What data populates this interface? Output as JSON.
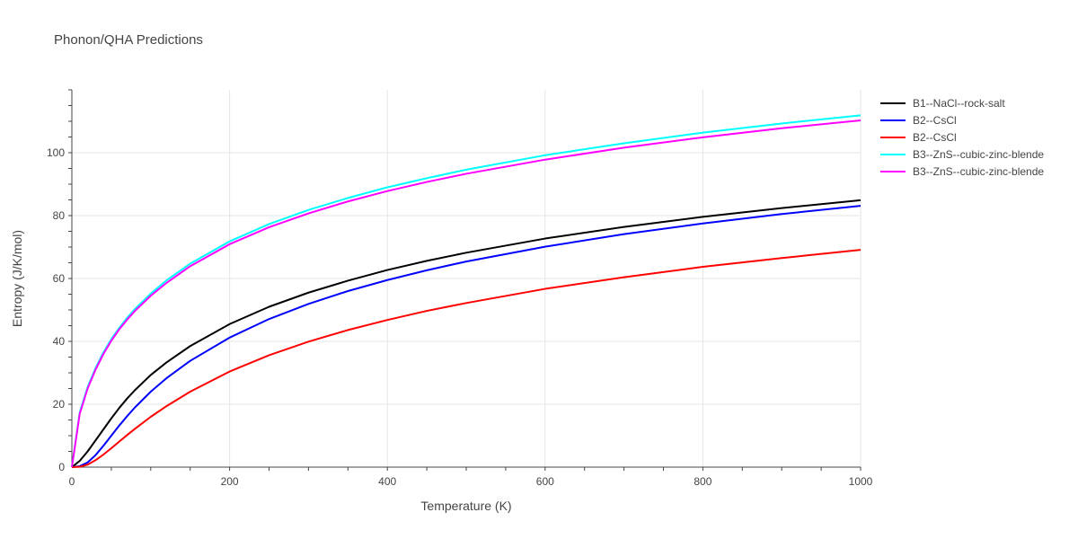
{
  "chart_data": {
    "type": "line",
    "title": "Phonon/QHA Predictions",
    "xlabel": "Temperature (K)",
    "ylabel": "Entropy (J/K/mol)",
    "xlim": [
      0,
      1000
    ],
    "ylim": [
      0,
      120
    ],
    "xticks": [
      0,
      200,
      400,
      600,
      800,
      1000
    ],
    "yticks": [
      0,
      20,
      40,
      60,
      80,
      100
    ],
    "grid": true,
    "legend_position": "right",
    "series": [
      {
        "name": "B1--NaCl--rock-salt",
        "color": "#000000",
        "x": [
          0,
          10,
          20,
          30,
          40,
          50,
          60,
          70,
          80,
          100,
          120,
          150,
          200,
          250,
          300,
          350,
          400,
          450,
          500,
          600,
          700,
          800,
          900,
          1000
        ],
        "y": [
          0,
          2,
          5,
          8.5,
          12,
          15.5,
          18.8,
          21.8,
          24.5,
          29.3,
          33.3,
          38.5,
          45.5,
          51.0,
          55.5,
          59.3,
          62.7,
          65.6,
          68.2,
          72.7,
          76.4,
          79.6,
          82.4,
          84.9
        ]
      },
      {
        "name": "B2--CsCl",
        "color": "#0000ff",
        "x": [
          0,
          10,
          20,
          30,
          40,
          50,
          60,
          70,
          80,
          100,
          120,
          150,
          200,
          250,
          300,
          350,
          400,
          450,
          500,
          600,
          700,
          800,
          900,
          1000
        ],
        "y": [
          0,
          0.3,
          1.5,
          3.8,
          6.8,
          10.0,
          13.2,
          16.2,
          19.0,
          24.0,
          28.3,
          33.8,
          41.2,
          47.1,
          51.9,
          56.0,
          59.5,
          62.6,
          65.4,
          70.1,
          74.1,
          77.5,
          80.5,
          83.1
        ]
      },
      {
        "name": "B2--CsCl",
        "color": "#ff0000",
        "x": [
          0,
          10,
          20,
          30,
          40,
          50,
          60,
          70,
          80,
          100,
          120,
          150,
          200,
          250,
          300,
          350,
          400,
          450,
          500,
          600,
          700,
          800,
          900,
          1000
        ],
        "y": [
          0,
          0.1,
          0.8,
          2.2,
          4.0,
          6.0,
          8.1,
          10.2,
          12.2,
          16.0,
          19.4,
          24.0,
          30.4,
          35.6,
          39.9,
          43.6,
          46.8,
          49.7,
          52.2,
          56.7,
          60.4,
          63.7,
          66.5,
          69.1
        ]
      },
      {
        "name": "B3--ZnS--cubic-zinc-blende",
        "color": "#00ffff",
        "x": [
          0,
          10,
          20,
          30,
          40,
          50,
          60,
          70,
          80,
          100,
          120,
          150,
          200,
          250,
          300,
          350,
          400,
          450,
          500,
          600,
          700,
          800,
          900,
          1000
        ],
        "y": [
          0,
          17.5,
          25.5,
          31.5,
          36.5,
          40.7,
          44.3,
          47.5,
          50.3,
          55.2,
          59.4,
          64.7,
          71.8,
          77.3,
          81.8,
          85.6,
          89.0,
          91.9,
          94.6,
          99.2,
          103.0,
          106.4,
          109.3,
          111.9
        ]
      },
      {
        "name": "B3--ZnS--cubic-zinc-blende",
        "color": "#ff00ff",
        "x": [
          0,
          10,
          20,
          30,
          40,
          50,
          60,
          70,
          80,
          100,
          120,
          150,
          200,
          250,
          300,
          350,
          400,
          450,
          500,
          600,
          700,
          800,
          900,
          1000
        ],
        "y": [
          0,
          17.0,
          25.0,
          31.0,
          36.0,
          40.2,
          43.8,
          46.9,
          49.7,
          54.5,
          58.6,
          63.9,
          70.9,
          76.3,
          80.7,
          84.5,
          87.8,
          90.7,
          93.3,
          97.8,
          101.6,
          104.9,
          107.8,
          110.3
        ]
      }
    ]
  }
}
